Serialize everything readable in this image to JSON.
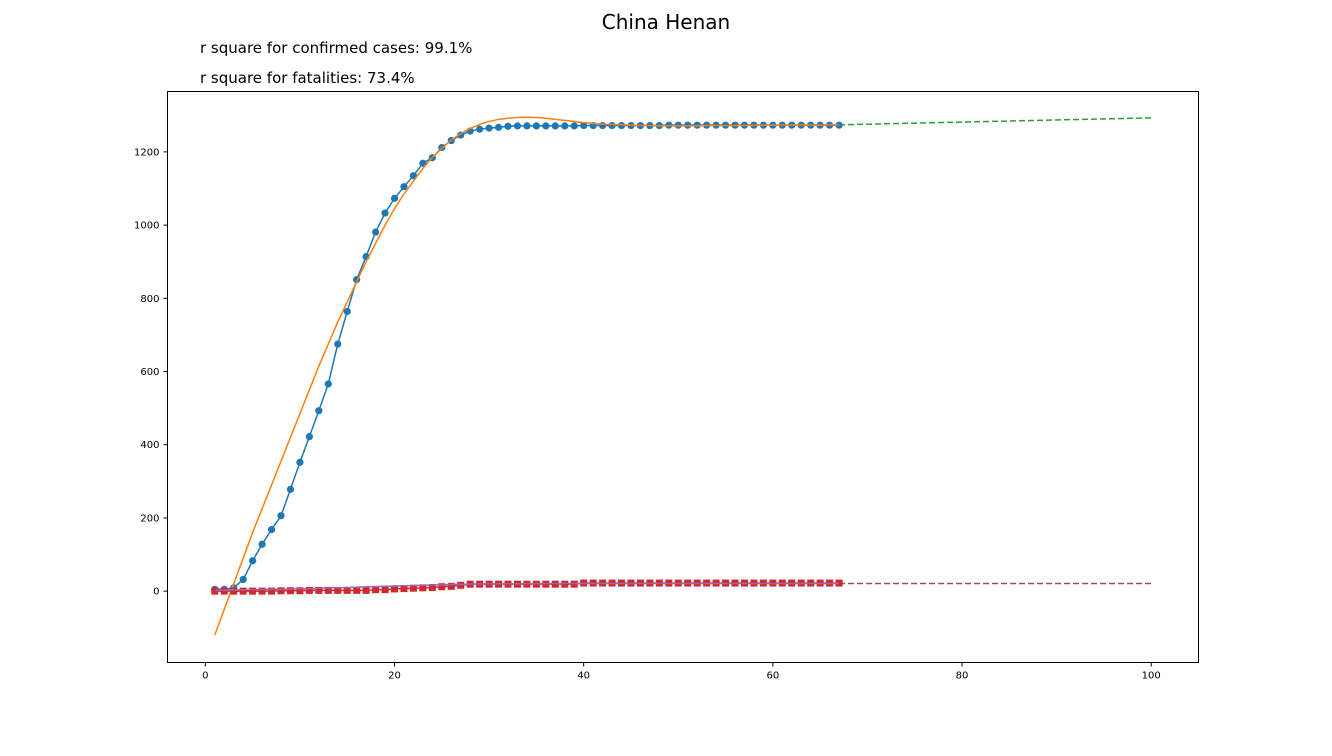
{
  "chart_data": {
    "type": "line",
    "title": "China Henan",
    "annotations": [
      "r square for confirmed cases: 99.1%",
      "r square for fatalities: 73.4%"
    ],
    "xlabel": "",
    "ylabel": "",
    "xlim": [
      -4,
      105
    ],
    "ylim": [
      -195,
      1365
    ],
    "x_ticks": [
      0,
      20,
      40,
      60,
      80,
      100
    ],
    "y_ticks": [
      0,
      200,
      400,
      600,
      800,
      1000,
      1200
    ],
    "grid": false,
    "colors": {
      "confirmed": "#1f77b4",
      "confirmed_fit": "#ff7f0e",
      "confirmed_forecast": "#2ca02c",
      "fatalities": "#d62728",
      "fatalities_fit": "#9467bd",
      "fatalities_forecast": "#8c564b"
    },
    "series": [
      {
        "key": "confirmed",
        "style": "line-marker-circle",
        "x": [
          1,
          2,
          3,
          4,
          5,
          6,
          7,
          8,
          9,
          10,
          11,
          12,
          13,
          14,
          15,
          16,
          17,
          18,
          19,
          20,
          21,
          22,
          23,
          24,
          25,
          26,
          27,
          28,
          29,
          30,
          31,
          32,
          33,
          34,
          35,
          36,
          37,
          38,
          39,
          40,
          41,
          42,
          43,
          44,
          45,
          46,
          47,
          48,
          49,
          50,
          51,
          52,
          53,
          54,
          55,
          56,
          57,
          58,
          59,
          60,
          61,
          62,
          63,
          64,
          65,
          66,
          67
        ],
        "values": [
          5,
          5,
          9,
          32,
          83,
          128,
          168,
          206,
          278,
          352,
          422,
          493,
          566,
          675,
          764,
          851,
          914,
          981,
          1033,
          1073,
          1105,
          1135,
          1169,
          1184,
          1212,
          1231,
          1246,
          1257,
          1262,
          1265,
          1267,
          1270,
          1271,
          1271,
          1271,
          1271,
          1271,
          1271,
          1271,
          1272,
          1272,
          1272,
          1272,
          1272,
          1272,
          1272,
          1272,
          1272,
          1273,
          1273,
          1273,
          1273,
          1273,
          1273,
          1273,
          1273,
          1273,
          1273,
          1273,
          1273,
          1273,
          1273,
          1273,
          1273,
          1273,
          1273,
          1273
        ]
      },
      {
        "key": "confirmed_fit",
        "style": "line",
        "x": [
          1,
          2,
          3,
          4,
          5,
          6,
          7,
          8,
          9,
          10,
          11,
          12,
          13,
          14,
          15,
          16,
          17,
          18,
          19,
          20,
          21,
          22,
          23,
          24,
          25,
          26,
          27,
          28,
          29,
          30,
          31,
          32,
          33,
          34,
          35,
          36,
          37,
          38,
          39,
          40,
          41,
          42,
          43,
          44,
          45,
          46,
          47,
          48,
          49,
          50,
          51,
          52,
          53,
          54,
          55,
          56,
          57,
          58,
          59,
          60,
          61,
          62,
          63,
          64,
          65,
          66,
          67
        ],
        "values": [
          -120,
          -50,
          20,
          90,
          160,
          225,
          290,
          355,
          420,
          485,
          550,
          615,
          675,
          735,
          790,
          845,
          900,
          950,
          1000,
          1045,
          1085,
          1120,
          1155,
          1185,
          1210,
          1232,
          1250,
          1264,
          1275,
          1283,
          1289,
          1292,
          1294,
          1295,
          1294,
          1292,
          1289,
          1286,
          1283,
          1280,
          1278,
          1276,
          1275,
          1274,
          1273,
          1272,
          1272,
          1271,
          1271,
          1271,
          1271,
          1271,
          1272,
          1272,
          1272,
          1272,
          1272,
          1273,
          1273,
          1273,
          1273,
          1273,
          1273,
          1273,
          1273,
          1274,
          1274
        ]
      },
      {
        "key": "confirmed_forecast",
        "style": "dashed",
        "x": [
          67,
          100
        ],
        "values": [
          1274,
          1293
        ]
      },
      {
        "key": "fatalities",
        "style": "line-marker-square",
        "x": [
          1,
          2,
          3,
          4,
          5,
          6,
          7,
          8,
          9,
          10,
          11,
          12,
          13,
          14,
          15,
          16,
          17,
          18,
          19,
          20,
          21,
          22,
          23,
          24,
          25,
          26,
          27,
          28,
          29,
          30,
          31,
          32,
          33,
          34,
          35,
          36,
          37,
          38,
          39,
          40,
          41,
          42,
          43,
          44,
          45,
          46,
          47,
          48,
          49,
          50,
          51,
          52,
          53,
          54,
          55,
          56,
          57,
          58,
          59,
          60,
          61,
          62,
          63,
          64,
          65,
          66,
          67
        ],
        "values": [
          0,
          0,
          0,
          0,
          0,
          0,
          0,
          1,
          1,
          1,
          2,
          2,
          2,
          2,
          2,
          2,
          2,
          4,
          4,
          6,
          7,
          8,
          9,
          10,
          12,
          13,
          16,
          19,
          19,
          19,
          19,
          19,
          19,
          19,
          19,
          19,
          19,
          19,
          19,
          22,
          22,
          22,
          22,
          22,
          22,
          22,
          22,
          22,
          22,
          22,
          22,
          22,
          22,
          22,
          22,
          22,
          22,
          22,
          22,
          22,
          22,
          22,
          22,
          22,
          22,
          22,
          22
        ]
      },
      {
        "key": "fatalities_fit",
        "style": "line",
        "x": [
          1,
          5,
          10,
          15,
          20,
          25,
          28,
          30,
          40,
          50,
          60,
          67
        ],
        "values": [
          2,
          4,
          6,
          10,
          14,
          17,
          19,
          20,
          21,
          21,
          21,
          21
        ]
      },
      {
        "key": "fatalities_forecast",
        "style": "dashed",
        "x": [
          67,
          100
        ],
        "values": [
          21,
          21
        ]
      }
    ]
  }
}
